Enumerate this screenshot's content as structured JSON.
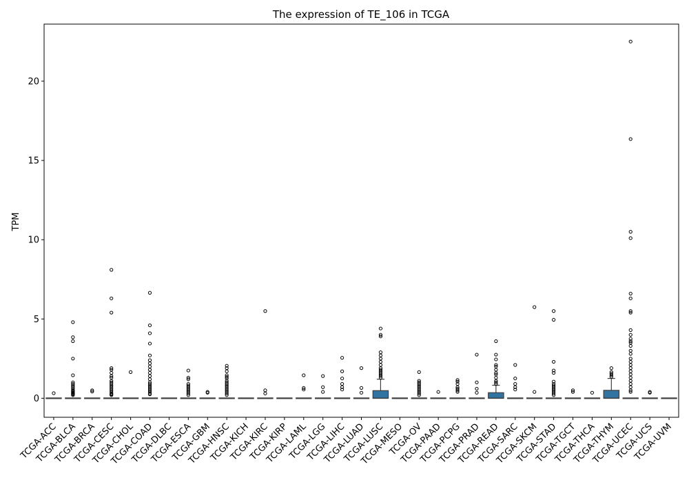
{
  "chart_data": {
    "type": "box",
    "title": "The expression of TE_106 in TCGA",
    "xlabel": "",
    "ylabel": "TPM",
    "ylim": [
      -1.2,
      23.6
    ],
    "yticks": [
      0,
      5,
      10,
      15,
      20
    ],
    "grid": false,
    "box_color": "#3274a1",
    "categories": [
      "TCGA-ACC",
      "TCGA-BLCA",
      "TCGA-BRCA",
      "TCGA-CESC",
      "TCGA-CHOL",
      "TCGA-COAD",
      "TCGA-DLBC",
      "TCGA-ESCA",
      "TCGA-GBM",
      "TCGA-HNSC",
      "TCGA-KICH",
      "TCGA-KIRC",
      "TCGA-KIRP",
      "TCGA-LAML",
      "TCGA-LGG",
      "TCGA-LIHC",
      "TCGA-LUAD",
      "TCGA-LUSC",
      "TCGA-MESO",
      "TCGA-OV",
      "TCGA-PAAD",
      "TCGA-PCPG",
      "TCGA-PRAD",
      "TCGA-READ",
      "TCGA-SARC",
      "TCGA-SKCM",
      "TCGA-STAD",
      "TCGA-TGCT",
      "TCGA-THCA",
      "TCGA-THYM",
      "TCGA-UCEC",
      "TCGA-UCS",
      "TCGA-UVM"
    ],
    "boxes": [
      {
        "q1": 0,
        "median": 0,
        "q3": 0,
        "whisker_low": 0,
        "whisker_high": 0,
        "outliers": [
          0.32
        ]
      },
      {
        "q1": 0,
        "median": 0,
        "q3": 0,
        "whisker_low": 0,
        "whisker_high": 0,
        "outliers": [
          4.8,
          3.85,
          3.6,
          2.5,
          1.45,
          1.0,
          0.9,
          0.8,
          0.7,
          0.6,
          0.5,
          0.45,
          0.4,
          0.35,
          0.3,
          0.25,
          0.2
        ]
      },
      {
        "q1": 0,
        "median": 0,
        "q3": 0,
        "whisker_low": 0,
        "whisker_high": 0,
        "outliers": [
          0.5,
          0.42
        ]
      },
      {
        "q1": 0,
        "median": 0,
        "q3": 0,
        "whisker_low": 0,
        "whisker_high": 0,
        "outliers": [
          8.1,
          6.3,
          5.4,
          1.9,
          1.8,
          1.6,
          1.4,
          1.3,
          1.1,
          1.0,
          0.9,
          0.8,
          0.7,
          0.6,
          0.5,
          0.4,
          0.3,
          0.25,
          0.2
        ]
      },
      {
        "q1": 0,
        "median": 0,
        "q3": 0,
        "whisker_low": 0,
        "whisker_high": 0,
        "outliers": [
          1.65
        ]
      },
      {
        "q1": 0,
        "median": 0,
        "q3": 0,
        "whisker_low": 0,
        "whisker_high": 0,
        "outliers": [
          6.65,
          4.6,
          4.1,
          3.45,
          2.7,
          2.4,
          2.2,
          2.0,
          1.8,
          1.6,
          1.4,
          1.2,
          1.0,
          0.9,
          0.8,
          0.7,
          0.6,
          0.5,
          0.4,
          0.3,
          0.25
        ]
      },
      {
        "q1": 0,
        "median": 0,
        "q3": 0,
        "whisker_low": 0,
        "whisker_high": 0,
        "outliers": []
      },
      {
        "q1": 0,
        "median": 0,
        "q3": 0,
        "whisker_low": 0,
        "whisker_high": 0,
        "outliers": [
          1.75,
          1.3,
          1.2,
          0.9,
          0.8,
          0.7,
          0.6,
          0.5,
          0.4,
          0.3,
          0.2
        ]
      },
      {
        "q1": 0,
        "median": 0,
        "q3": 0,
        "whisker_low": 0,
        "whisker_high": 0,
        "outliers": [
          0.4,
          0.35
        ]
      },
      {
        "q1": 0,
        "median": 0,
        "q3": 0,
        "whisker_low": 0,
        "whisker_high": 0,
        "outliers": [
          2.05,
          1.9,
          1.7,
          1.45,
          1.35,
          1.25,
          1.1,
          1.0,
          0.9,
          0.8,
          0.7,
          0.6,
          0.5,
          0.4,
          0.3,
          0.2
        ]
      },
      {
        "q1": 0,
        "median": 0,
        "q3": 0,
        "whisker_low": 0,
        "whisker_high": 0,
        "outliers": []
      },
      {
        "q1": 0,
        "median": 0,
        "q3": 0,
        "whisker_low": 0,
        "whisker_high": 0,
        "outliers": [
          5.5,
          0.5,
          0.3
        ]
      },
      {
        "q1": 0,
        "median": 0,
        "q3": 0,
        "whisker_low": 0,
        "whisker_high": 0,
        "outliers": []
      },
      {
        "q1": 0,
        "median": 0,
        "q3": 0,
        "whisker_low": 0,
        "whisker_high": 0,
        "outliers": [
          1.45,
          0.65,
          0.55
        ]
      },
      {
        "q1": 0,
        "median": 0,
        "q3": 0,
        "whisker_low": 0,
        "whisker_high": 0,
        "outliers": [
          1.4,
          0.7,
          0.4
        ]
      },
      {
        "q1": 0,
        "median": 0,
        "q3": 0,
        "whisker_low": 0,
        "whisker_high": 0,
        "outliers": [
          2.55,
          1.7,
          1.25,
          0.9,
          0.7,
          0.55
        ]
      },
      {
        "q1": 0,
        "median": 0,
        "q3": 0,
        "whisker_low": 0,
        "whisker_high": 0,
        "outliers": [
          1.9,
          0.65,
          0.35
        ]
      },
      {
        "q1": 0,
        "median": 0,
        "q3": 0.48,
        "whisker_low": 0,
        "whisker_high": 1.2,
        "outliers": [
          4.4,
          4.0,
          3.9,
          2.9,
          2.7,
          2.5,
          2.3,
          2.1,
          1.9,
          1.8,
          1.7,
          1.6,
          1.5,
          1.4,
          1.3
        ]
      },
      {
        "q1": 0,
        "median": 0,
        "q3": 0,
        "whisker_low": 0,
        "whisker_high": 0,
        "outliers": []
      },
      {
        "q1": 0,
        "median": 0,
        "q3": 0,
        "whisker_low": 0,
        "whisker_high": 0,
        "outliers": [
          1.65,
          1.1,
          1.0,
          0.9,
          0.8,
          0.7,
          0.6,
          0.5,
          0.4,
          0.3,
          0.2
        ]
      },
      {
        "q1": 0,
        "median": 0,
        "q3": 0,
        "whisker_low": 0,
        "whisker_high": 0,
        "outliers": [
          0.4
        ]
      },
      {
        "q1": 0,
        "median": 0,
        "q3": 0,
        "whisker_low": 0,
        "whisker_high": 0,
        "outliers": [
          1.15,
          1.05,
          0.9,
          0.7,
          0.6,
          0.5,
          0.4
        ]
      },
      {
        "q1": 0,
        "median": 0,
        "q3": 0,
        "whisker_low": 0,
        "whisker_high": 0,
        "outliers": [
          2.75,
          1.0,
          0.6,
          0.35
        ]
      },
      {
        "q1": 0,
        "median": 0,
        "q3": 0.35,
        "whisker_low": 0,
        "whisker_high": 0.82,
        "outliers": [
          3.6,
          2.75,
          2.45,
          2.1,
          2.0,
          1.8,
          1.6,
          1.5,
          1.3,
          1.1,
          1.0,
          0.9
        ]
      },
      {
        "q1": 0,
        "median": 0,
        "q3": 0,
        "whisker_low": 0,
        "whisker_high": 0,
        "outliers": [
          2.1,
          1.25,
          0.9,
          0.7,
          0.55
        ]
      },
      {
        "q1": 0,
        "median": 0,
        "q3": 0,
        "whisker_low": 0,
        "whisker_high": 0,
        "outliers": [
          5.75,
          0.4
        ]
      },
      {
        "q1": 0,
        "median": 0,
        "q3": 0,
        "whisker_low": 0,
        "whisker_high": 0,
        "outliers": [
          5.5,
          4.95,
          2.3,
          1.75,
          1.6,
          1.05,
          0.9,
          0.8,
          0.7,
          0.6,
          0.5,
          0.4,
          0.3,
          0.2
        ]
      },
      {
        "q1": 0,
        "median": 0,
        "q3": 0,
        "whisker_low": 0,
        "whisker_high": 0,
        "outliers": [
          0.5,
          0.4
        ]
      },
      {
        "q1": 0,
        "median": 0,
        "q3": 0,
        "whisker_low": 0,
        "whisker_high": 0,
        "outliers": [
          0.35
        ]
      },
      {
        "q1": 0,
        "median": 0,
        "q3": 0.5,
        "whisker_low": 0,
        "whisker_high": 1.25,
        "outliers": [
          1.9,
          1.65,
          1.55,
          1.45,
          1.35
        ]
      },
      {
        "q1": 0,
        "median": 0,
        "q3": 0,
        "whisker_low": 0,
        "whisker_high": 0,
        "outliers": [
          22.5,
          16.35,
          10.5,
          10.1,
          6.6,
          6.3,
          5.5,
          5.4,
          4.3,
          4.0,
          3.75,
          3.6,
          3.5,
          3.3,
          3.0,
          2.8,
          2.5,
          2.3,
          2.1,
          1.9,
          1.7,
          1.5,
          1.3,
          1.1,
          0.9,
          0.7,
          0.5,
          0.4
        ]
      },
      {
        "q1": 0,
        "median": 0,
        "q3": 0,
        "whisker_low": 0,
        "whisker_high": 0,
        "outliers": [
          0.4,
          0.35
        ]
      },
      {
        "q1": 0,
        "median": 0,
        "q3": 0,
        "whisker_low": 0,
        "whisker_high": 0,
        "outliers": []
      }
    ]
  }
}
